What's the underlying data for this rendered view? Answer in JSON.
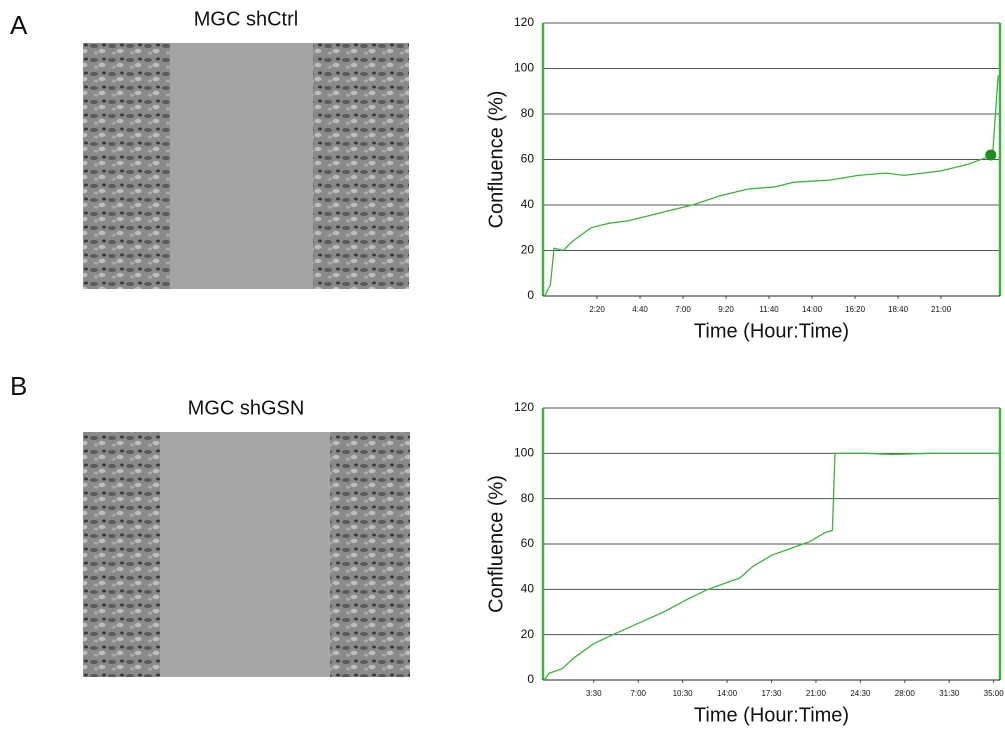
{
  "panels": [
    {
      "label": "A",
      "image_title": "MGC shCtrl"
    },
    {
      "label": "B",
      "image_title": "MGC shGSN"
    }
  ],
  "chart_data": [
    {
      "type": "line",
      "ylabel": "Confluence (%)",
      "xlabel": "Time (Hour:Time)",
      "x": [
        -0.5,
        -0.2,
        0,
        0.5,
        1,
        2,
        3,
        4,
        5,
        6,
        7.5,
        9,
        10.5,
        12,
        13,
        15,
        16.5,
        18,
        19,
        21,
        22.5,
        23.5,
        23.8,
        24.1
      ],
      "values": [
        0,
        5,
        21,
        20,
        24,
        30,
        32,
        33,
        35,
        37,
        40,
        44,
        47,
        48,
        50,
        51,
        53,
        54,
        53,
        55,
        58,
        61,
        62,
        97
      ],
      "color": "#3cb43c",
      "marker": {
        "x": 23.7,
        "value": 62,
        "color": "#1e8c1e"
      },
      "xlim": [
        -0.6,
        24.2
      ],
      "ylim": [
        0,
        120
      ],
      "xticks": [
        {
          "value": 2.333,
          "label": "2:20"
        },
        {
          "value": 4.667,
          "label": "4:40"
        },
        {
          "value": 7,
          "label": "7:00"
        },
        {
          "value": 9.333,
          "label": "9:20"
        },
        {
          "value": 11.667,
          "label": "11:40"
        },
        {
          "value": 14,
          "label": "14:00"
        },
        {
          "value": 16.333,
          "label": "16:20"
        },
        {
          "value": 18.667,
          "label": "18:40"
        },
        {
          "value": 21,
          "label": "21:00"
        }
      ],
      "yticks": [
        0,
        20,
        40,
        60,
        80,
        100,
        120
      ],
      "grid": true
    },
    {
      "type": "line",
      "ylabel": "Confluence (%)",
      "xlabel": "Time (Hour:Time)",
      "x": [
        -0.4,
        0,
        1,
        2,
        3.5,
        5,
        7,
        9,
        11,
        12.5,
        14,
        15,
        16,
        17.5,
        19,
        20.5,
        21.7,
        22.3,
        22.5,
        25,
        27,
        30,
        35.5
      ],
      "values": [
        0,
        3,
        5,
        10,
        16,
        20,
        25,
        30,
        36,
        40,
        43,
        45,
        50,
        55,
        58,
        61,
        65,
        66,
        100,
        100,
        99.5,
        100,
        100
      ],
      "color": "#3cb43c",
      "xlim": [
        -0.5,
        35.5
      ],
      "ylim": [
        0,
        120
      ],
      "xticks": [
        {
          "value": 3.5,
          "label": "3:30"
        },
        {
          "value": 7,
          "label": "7:00"
        },
        {
          "value": 10.5,
          "label": "10:30"
        },
        {
          "value": 14,
          "label": "14:00"
        },
        {
          "value": 17.5,
          "label": "17:30"
        },
        {
          "value": 21,
          "label": "21:00"
        },
        {
          "value": 24.5,
          "label": "24:30"
        },
        {
          "value": 28,
          "label": "28:00"
        },
        {
          "value": 31.5,
          "label": "31:30"
        },
        {
          "value": 35,
          "label": "35:00"
        }
      ],
      "yticks": [
        0,
        20,
        40,
        60,
        80,
        100,
        120
      ],
      "grid": true
    }
  ]
}
